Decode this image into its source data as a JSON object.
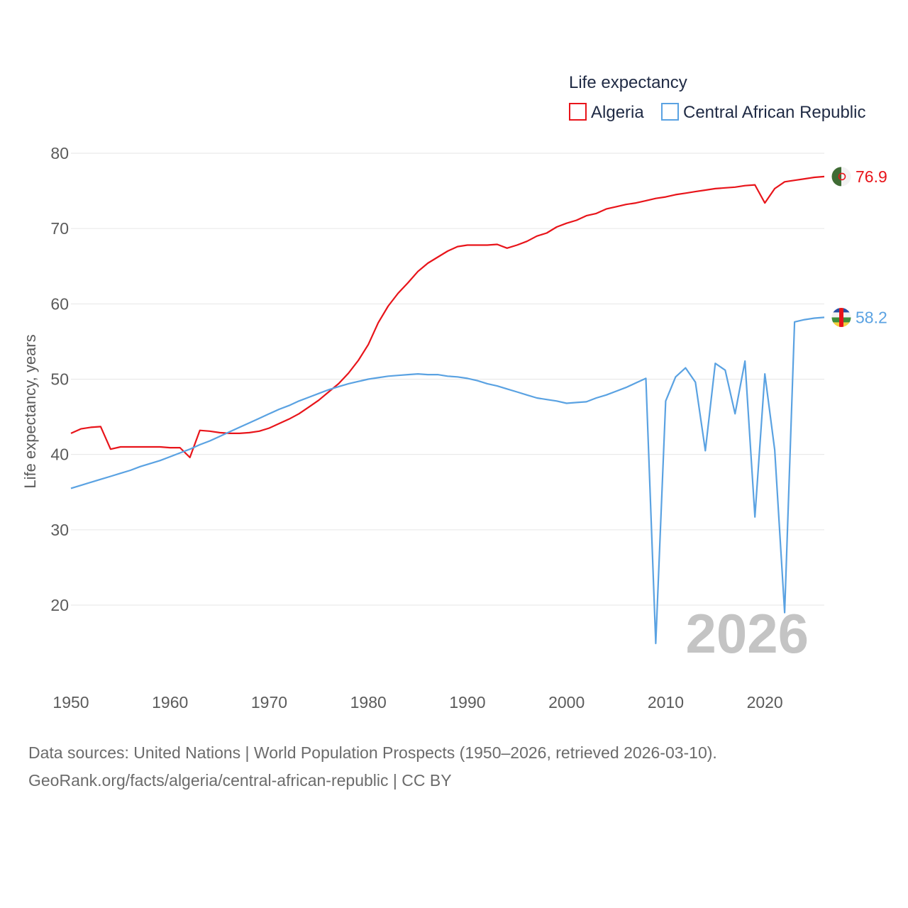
{
  "chart_data": {
    "type": "line",
    "title": "Life expectancy",
    "xlabel": "",
    "ylabel": "Life expectancy, years",
    "xlim": [
      1950,
      2026
    ],
    "ylim": [
      10,
      84
    ],
    "yticks": [
      20,
      30,
      40,
      50,
      60,
      70,
      80
    ],
    "xticks": [
      1950,
      1960,
      1970,
      1980,
      1990,
      2000,
      2010,
      2020
    ],
    "year_label": "2026",
    "x": [
      1950,
      1951,
      1952,
      1953,
      1954,
      1955,
      1956,
      1957,
      1958,
      1959,
      1960,
      1961,
      1962,
      1963,
      1964,
      1965,
      1966,
      1967,
      1968,
      1969,
      1970,
      1971,
      1972,
      1973,
      1974,
      1975,
      1976,
      1977,
      1978,
      1979,
      1980,
      1981,
      1982,
      1983,
      1984,
      1985,
      1986,
      1987,
      1988,
      1989,
      1990,
      1991,
      1992,
      1993,
      1994,
      1995,
      1996,
      1997,
      1998,
      1999,
      2000,
      2001,
      2002,
      2003,
      2004,
      2005,
      2006,
      2007,
      2008,
      2009,
      2010,
      2011,
      2012,
      2013,
      2014,
      2015,
      2016,
      2017,
      2018,
      2019,
      2020,
      2021,
      2022,
      2023,
      2024,
      2025,
      2026
    ],
    "series": [
      {
        "name": "Algeria",
        "color": "#e8141a",
        "end_label": "76.9",
        "values": [
          42.8,
          43.4,
          43.6,
          43.7,
          40.7,
          41.0,
          41.0,
          41.0,
          41.0,
          41.0,
          40.9,
          40.9,
          39.6,
          43.2,
          43.1,
          42.9,
          42.8,
          42.8,
          42.9,
          43.1,
          43.5,
          44.1,
          44.7,
          45.4,
          46.3,
          47.2,
          48.3,
          49.4,
          50.8,
          52.5,
          54.6,
          57.5,
          59.7,
          61.4,
          62.8,
          64.3,
          65.4,
          66.2,
          67.0,
          67.6,
          67.8,
          67.8,
          67.8,
          67.9,
          67.4,
          67.8,
          68.3,
          69.0,
          69.4,
          70.2,
          70.7,
          71.1,
          71.7,
          72.0,
          72.6,
          72.9,
          73.2,
          73.4,
          73.7,
          74.0,
          74.2,
          74.5,
          74.7,
          74.9,
          75.1,
          75.3,
          75.4,
          75.5,
          75.7,
          75.8,
          73.4,
          75.3,
          76.2,
          76.4,
          76.6,
          76.8,
          76.9
        ]
      },
      {
        "name": "Central African Republic",
        "color": "#5aa2e2",
        "end_label": "58.2",
        "values": [
          35.5,
          35.9,
          36.3,
          36.7,
          37.1,
          37.5,
          37.9,
          38.4,
          38.8,
          39.2,
          39.7,
          40.2,
          40.7,
          41.3,
          41.8,
          42.4,
          43.0,
          43.6,
          44.2,
          44.8,
          45.4,
          46.0,
          46.5,
          47.1,
          47.6,
          48.1,
          48.6,
          49.0,
          49.4,
          49.7,
          50.0,
          50.2,
          50.4,
          50.5,
          50.6,
          50.7,
          50.6,
          50.6,
          50.4,
          50.3,
          50.1,
          49.8,
          49.4,
          49.1,
          48.7,
          48.3,
          47.9,
          47.5,
          47.3,
          47.1,
          46.8,
          46.9,
          47.0,
          47.5,
          47.9,
          48.4,
          48.9,
          49.5,
          50.1,
          14.9,
          47.1,
          50.3,
          51.5,
          49.6,
          40.5,
          52.1,
          51.2,
          45.4,
          52.4,
          31.7,
          50.7,
          40.6,
          19.0,
          57.6,
          57.9,
          58.1,
          58.2
        ]
      }
    ]
  },
  "footer": {
    "line1": "Data sources: United Nations | World Population Prospects (1950–2026, retrieved 2026-03-10).",
    "line2": "GeoRank.org/facts/algeria/central-african-republic | CC BY"
  }
}
